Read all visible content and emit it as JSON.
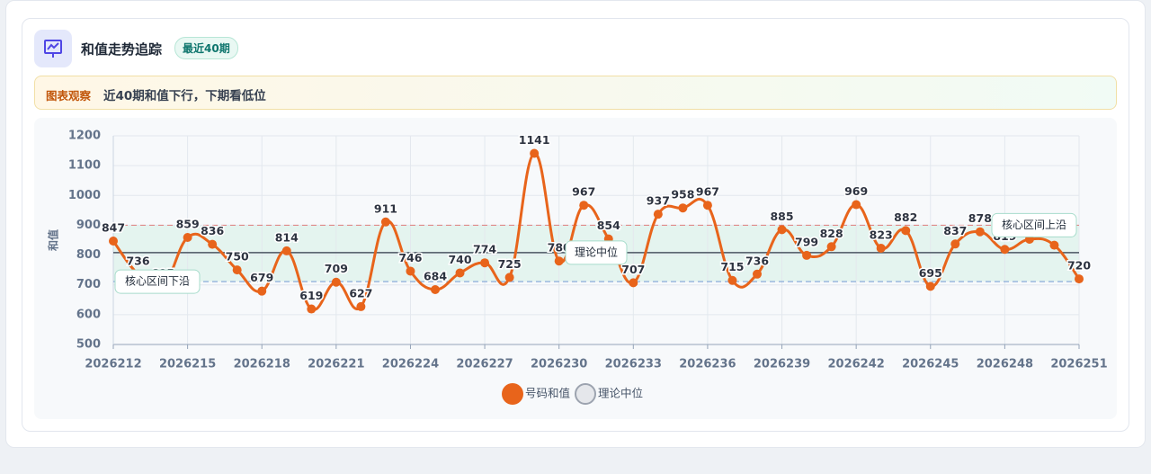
{
  "header": {
    "title": "和值走势追踪",
    "badge": "最近40期"
  },
  "notice": {
    "tag": "图表观察",
    "text": "近40期和值下行，下期看低位"
  },
  "chart_data": {
    "type": "line",
    "y_label": "和值",
    "categories": [
      "2026212",
      null,
      null,
      "2026215",
      null,
      null,
      "2026218",
      null,
      null,
      "2026221",
      null,
      null,
      "2026224",
      null,
      null,
      "2026227",
      null,
      null,
      "2026230",
      null,
      null,
      "2026233",
      null,
      null,
      "2026236",
      null,
      null,
      "2026239",
      null,
      null,
      "2026242",
      null,
      null,
      "2026245",
      null,
      null,
      "2026248",
      null,
      null,
      "2026251"
    ],
    "series": [
      {
        "name": "号码和值",
        "color": "#e8641b",
        "values": [
          847,
          736,
          695,
          859,
          836,
          750,
          679,
          814,
          619,
          709,
          627,
          911,
          746,
          684,
          740,
          774,
          725,
          1141,
          780,
          967,
          854,
          707,
          937,
          958,
          967,
          715,
          736,
          885,
          799,
          828,
          969,
          823,
          882,
          695,
          837,
          878,
          819,
          853,
          833,
          720
        ]
      }
    ],
    "ylim": [
      500,
      1200
    ],
    "yticks": [
      500,
      600,
      700,
      800,
      900,
      1000,
      1100,
      1200
    ],
    "grid": true,
    "reference_lines": [
      {
        "name": "核心区间上沿",
        "value": 900,
        "color": "#e08a8a",
        "style": "dashed"
      },
      {
        "name": "理论中位",
        "value": 808,
        "color": "#4b5563",
        "style": "solid"
      },
      {
        "name": "核心区间下沿",
        "value": 711,
        "color": "#7fa3d6",
        "style": "dashed"
      }
    ],
    "band_color": "#dff3ec",
    "legend": "bottom"
  }
}
